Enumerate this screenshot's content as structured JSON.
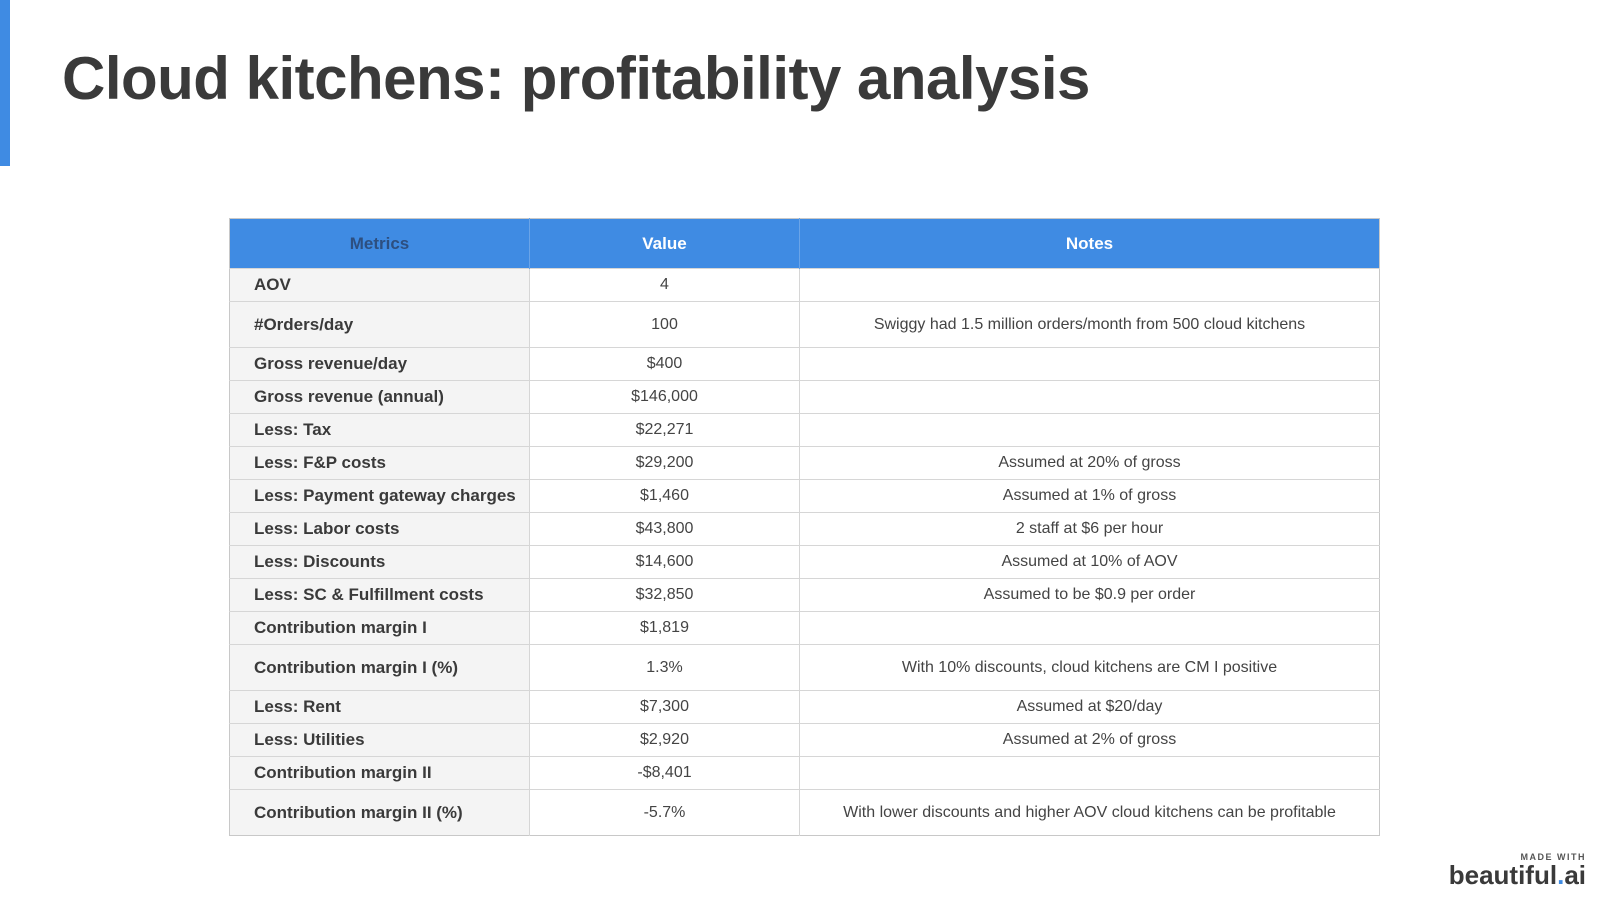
{
  "slide": {
    "title": "Cloud kitchens: profitability analysis"
  },
  "table": {
    "headers": [
      "Metrics",
      "Value",
      "Notes"
    ],
    "rows": [
      {
        "metric": "AOV",
        "value": "4",
        "note": ""
      },
      {
        "metric": "#Orders/day",
        "value": "100",
        "note": "Swiggy had 1.5 million orders/month from 500 cloud kitchens"
      },
      {
        "metric": "Gross revenue/day",
        "value": "$400",
        "note": ""
      },
      {
        "metric": "Gross revenue (annual)",
        "value": "$146,000",
        "note": ""
      },
      {
        "metric": "Less: Tax",
        "value": "$22,271",
        "note": ""
      },
      {
        "metric": "Less: F&P costs",
        "value": "$29,200",
        "note": "Assumed at 20% of gross"
      },
      {
        "metric": "Less: Payment gateway charges",
        "value": "$1,460",
        "note": "Assumed at 1% of gross"
      },
      {
        "metric": "Less: Labor costs",
        "value": "$43,800",
        "note": "2 staff at $6 per hour"
      },
      {
        "metric": "Less: Discounts",
        "value": "$14,600",
        "note": "Assumed at 10% of AOV"
      },
      {
        "metric": "Less: SC & Fulfillment costs",
        "value": "$32,850",
        "note": "Assumed to be $0.9 per order"
      },
      {
        "metric": "Contribution margin I",
        "value": "$1,819",
        "note": ""
      },
      {
        "metric": "Contribution margin I (%)",
        "value": "1.3%",
        "note": "With 10% discounts, cloud kitchens are CM I positive"
      },
      {
        "metric": "Less: Rent",
        "value": "$7,300",
        "note": "Assumed at $20/day"
      },
      {
        "metric": "Less: Utilities",
        "value": "$2,920",
        "note": "Assumed at 2% of gross"
      },
      {
        "metric": "Contribution margin II",
        "value": "-$8,401",
        "note": ""
      },
      {
        "metric": "Contribution margin II (%)",
        "value": "-5.7%",
        "note": "With lower discounts and higher AOV cloud kitchens can be profitable"
      }
    ]
  },
  "branding": {
    "made_with": "MADE WITH",
    "logo_main": "beautiful",
    "logo_dot": ".",
    "logo_suffix": "ai"
  },
  "colors": {
    "accent": "#3f8be3",
    "title_text": "#3a3a3a",
    "metric_column_bg": "#f4f4f4"
  }
}
